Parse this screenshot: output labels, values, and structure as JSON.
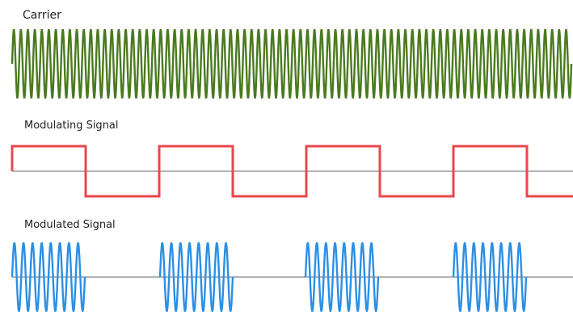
{
  "labels": {
    "carrier": "Carrier",
    "modulating": "Modulating Signal",
    "modulated": "Modulated Signal"
  },
  "colors": {
    "carrier": "#4a7a1e",
    "modulating": "#e8474c",
    "modulated": "#2b8fe6",
    "baseline": "#9a9a9a",
    "text": "#222222"
  },
  "signal": {
    "carrier_cycles": 80,
    "modulating_pattern": [
      1,
      0,
      1,
      0,
      1,
      0,
      1,
      0
    ],
    "modulated_cycles_per_on_segment": 8
  }
}
